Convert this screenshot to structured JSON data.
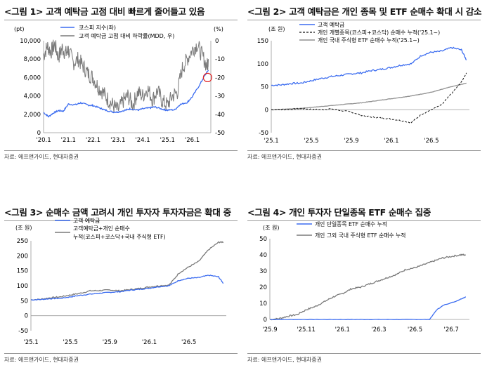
{
  "colors": {
    "blue": "#3b6cf0",
    "gray": "#7a7a7a",
    "black": "#111111",
    "lightgray": "#8f8f8f",
    "red": "#e02020"
  },
  "source": "자료: 에프앤가이드, 현대차증권",
  "chart_data": [
    {
      "type": "line",
      "title": "<그림 1> 고객 예탁금 고점 대비 빠르게 줄어들고 있음",
      "ylabel_left": "(pt)",
      "ylabel_right": "(%)",
      "ylim": [
        0,
        10000
      ],
      "ylim_right": [
        -50,
        0
      ],
      "yticks": [
        "0",
        "2,000",
        "4,000",
        "6,000",
        "8,000",
        "10,000"
      ],
      "yticks_right": [
        "0",
        "-10",
        "-20",
        "-30",
        "-40",
        "-50"
      ],
      "xticks": [
        "'20.1",
        "'21.1",
        "'22.1",
        "'23.1",
        "'24.1",
        "'25.1",
        "'26.1"
      ],
      "legend": "top-center",
      "series": [
        {
          "name": "코스피 지수(좌)",
          "axis": "left",
          "color": "blue",
          "t": [
            2020.0,
            2020.2,
            2020.4,
            2020.6,
            2020.8,
            2021.0,
            2021.3,
            2021.5,
            2021.8,
            2022.0,
            2022.3,
            2022.5,
            2022.8,
            2023.0,
            2023.3,
            2023.5,
            2023.8,
            2024.0,
            2024.3,
            2024.5,
            2024.8,
            2025.0,
            2025.3,
            2025.5,
            2025.8,
            2026.0,
            2026.3,
            2026.5,
            2026.65
          ],
          "values": [
            2200,
            1750,
            2150,
            2400,
            2350,
            3100,
            3050,
            3250,
            3000,
            2950,
            2650,
            2450,
            2250,
            2250,
            2450,
            2600,
            2450,
            2600,
            2700,
            2800,
            2550,
            2450,
            2500,
            3050,
            3300,
            3900,
            5200,
            6200,
            6800
          ]
        },
        {
          "name": "고객 예탁금 고점 대비 하락률(MDD, 우)",
          "axis": "right",
          "color": "gray",
          "t": [
            2020.0,
            2020.15,
            2020.3,
            2020.45,
            2020.6,
            2020.75,
            2020.9,
            2021.0,
            2021.2,
            2021.4,
            2021.6,
            2021.8,
            2022.0,
            2022.2,
            2022.4,
            2022.6,
            2022.8,
            2023.0,
            2023.2,
            2023.4,
            2023.6,
            2023.8,
            2024.0,
            2024.2,
            2024.4,
            2024.6,
            2024.8,
            2025.0,
            2025.2,
            2025.4,
            2025.6,
            2025.8,
            2026.0,
            2026.2,
            2026.4,
            2026.6,
            2026.65
          ],
          "values": [
            -8,
            -3,
            -6,
            -2,
            -9,
            -4,
            -7,
            -5,
            -12,
            -10,
            -14,
            -18,
            -20,
            -25,
            -28,
            -32,
            -35,
            -38,
            -33,
            -30,
            -35,
            -28,
            -30,
            -26,
            -32,
            -27,
            -33,
            -35,
            -30,
            -28,
            -15,
            -10,
            -5,
            -2,
            -8,
            -14,
            -10
          ]
        }
      ],
      "annotation": "red circle at latest MDD point"
    },
    {
      "type": "line",
      "title": "<그림 2> 고객 예탁금은 개인 종목 및 ETF 순매수 확대 시 감소",
      "ylabel": "(조 원)",
      "ylim": [
        -50,
        150
      ],
      "yticks": [
        "150",
        "100",
        "50",
        "0",
        "-50"
      ],
      "xticks": [
        "'25.1",
        "'25.5",
        "'25.9",
        "'26.1",
        "'26.5"
      ],
      "legend": "top-left",
      "series": [
        {
          "name": "고객 예탁금",
          "color": "blue",
          "t": [
            0,
            1,
            2,
            3,
            4,
            5,
            6,
            7,
            8,
            9,
            10,
            11,
            12,
            13,
            14,
            15,
            16,
            17,
            18,
            19,
            19.5
          ],
          "values": [
            53,
            54,
            57,
            58,
            63,
            68,
            72,
            75,
            78,
            80,
            85,
            88,
            92,
            97,
            100,
            118,
            125,
            127,
            135,
            130,
            108
          ]
        },
        {
          "name": "개인 개별종목(코스피+코스닥) 순매수 누적('25.1~)",
          "color": "black",
          "dash": "dashed",
          "t": [
            0,
            1,
            2,
            3,
            4,
            5,
            6,
            7,
            8,
            9,
            10,
            11,
            12,
            13,
            14,
            15,
            16,
            17,
            18,
            19,
            19.5
          ],
          "values": [
            0,
            0,
            1,
            2,
            1,
            0,
            2,
            -2,
            -5,
            -12,
            -16,
            -18,
            -20,
            -24,
            -28,
            -10,
            0,
            10,
            35,
            60,
            80
          ]
        },
        {
          "name": "개인 국내 주식형 ETF 순매수 누적('25.1~)",
          "color": "lightgray",
          "t": [
            0,
            1,
            2,
            3,
            4,
            5,
            6,
            7,
            8,
            9,
            10,
            11,
            12,
            13,
            14,
            15,
            16,
            17,
            18,
            19,
            19.5
          ],
          "values": [
            0,
            1,
            2,
            3,
            5,
            7,
            9,
            11,
            13,
            15,
            18,
            21,
            24,
            27,
            30,
            34,
            38,
            44,
            50,
            55,
            58
          ]
        }
      ]
    },
    {
      "type": "line",
      "title": "<그림 3> 순매수 금액 고려시 개인 투자자 투자자금은 확대 중",
      "ylabel": "(조 원)",
      "ylim": [
        -50,
        250
      ],
      "yticks": [
        "250",
        "200",
        "150",
        "100",
        "50",
        "0",
        "-50"
      ],
      "xticks": [
        "'25.1",
        "'25.5",
        "'25.9",
        "'26.1",
        "'26.5"
      ],
      "legend": "top-center",
      "series": [
        {
          "name": "고객 예탁금",
          "color": "blue",
          "t": [
            0,
            1,
            2,
            3,
            4,
            5,
            6,
            7,
            8,
            9,
            10,
            11,
            12,
            13,
            14,
            15,
            16,
            17,
            18,
            19,
            19.5
          ],
          "values": [
            53,
            54,
            57,
            58,
            63,
            68,
            72,
            75,
            78,
            80,
            85,
            88,
            92,
            97,
            100,
            118,
            125,
            127,
            135,
            130,
            108
          ]
        },
        {
          "name": "고객예탁금+개인 순매수 누적(코스피+코스닥+국내 주식형 ETF)",
          "color": "gray",
          "t": [
            0,
            1,
            2,
            3,
            4,
            5,
            6,
            7,
            8,
            9,
            10,
            11,
            12,
            13,
            14,
            15,
            16,
            17,
            18,
            19,
            19.5
          ],
          "values": [
            53,
            55,
            60,
            63,
            69,
            75,
            83,
            84,
            86,
            83,
            87,
            91,
            96,
            100,
            102,
            142,
            163,
            181,
            220,
            245,
            246
          ]
        }
      ]
    },
    {
      "type": "line",
      "title": "<그림 4> 개인 투자자 단일종목 ETF 순매수 집중",
      "ylabel": "(조 원)",
      "ylim": [
        0,
        50
      ],
      "yticks": [
        "50",
        "40",
        "30",
        "20",
        "10",
        "0"
      ],
      "xticks": [
        "'25.9",
        "'25.11",
        "'26.1",
        "'26.3",
        "'26.5",
        "'26.7"
      ],
      "legend": "top-center",
      "series": [
        {
          "name": "개인 단일종목 ETF 순매수 누적",
          "color": "blue",
          "t": [
            0,
            1,
            2,
            3,
            4,
            5,
            6,
            7,
            8,
            8.8,
            9.2,
            9.6,
            10.2,
            10.6,
            10.8
          ],
          "values": [
            0,
            0,
            0,
            0,
            0,
            0,
            0,
            0,
            0,
            0,
            6,
            9,
            11,
            13,
            14
          ]
        },
        {
          "name": "개인 그외 국내 주식형 ETF 순매수 누적",
          "color": "gray",
          "t": [
            0,
            0.5,
            1,
            1.5,
            2,
            2.5,
            3,
            3.5,
            4,
            4.5,
            5,
            5.5,
            6,
            6.5,
            7,
            7.5,
            8,
            8.5,
            9,
            9.5,
            10,
            10.5,
            10.8
          ],
          "values": [
            0,
            0.5,
            2,
            3,
            6,
            8,
            11,
            14,
            16,
            19,
            20,
            22,
            24,
            26,
            28,
            31,
            32,
            34,
            36,
            38,
            39,
            40,
            40
          ]
        }
      ]
    }
  ]
}
